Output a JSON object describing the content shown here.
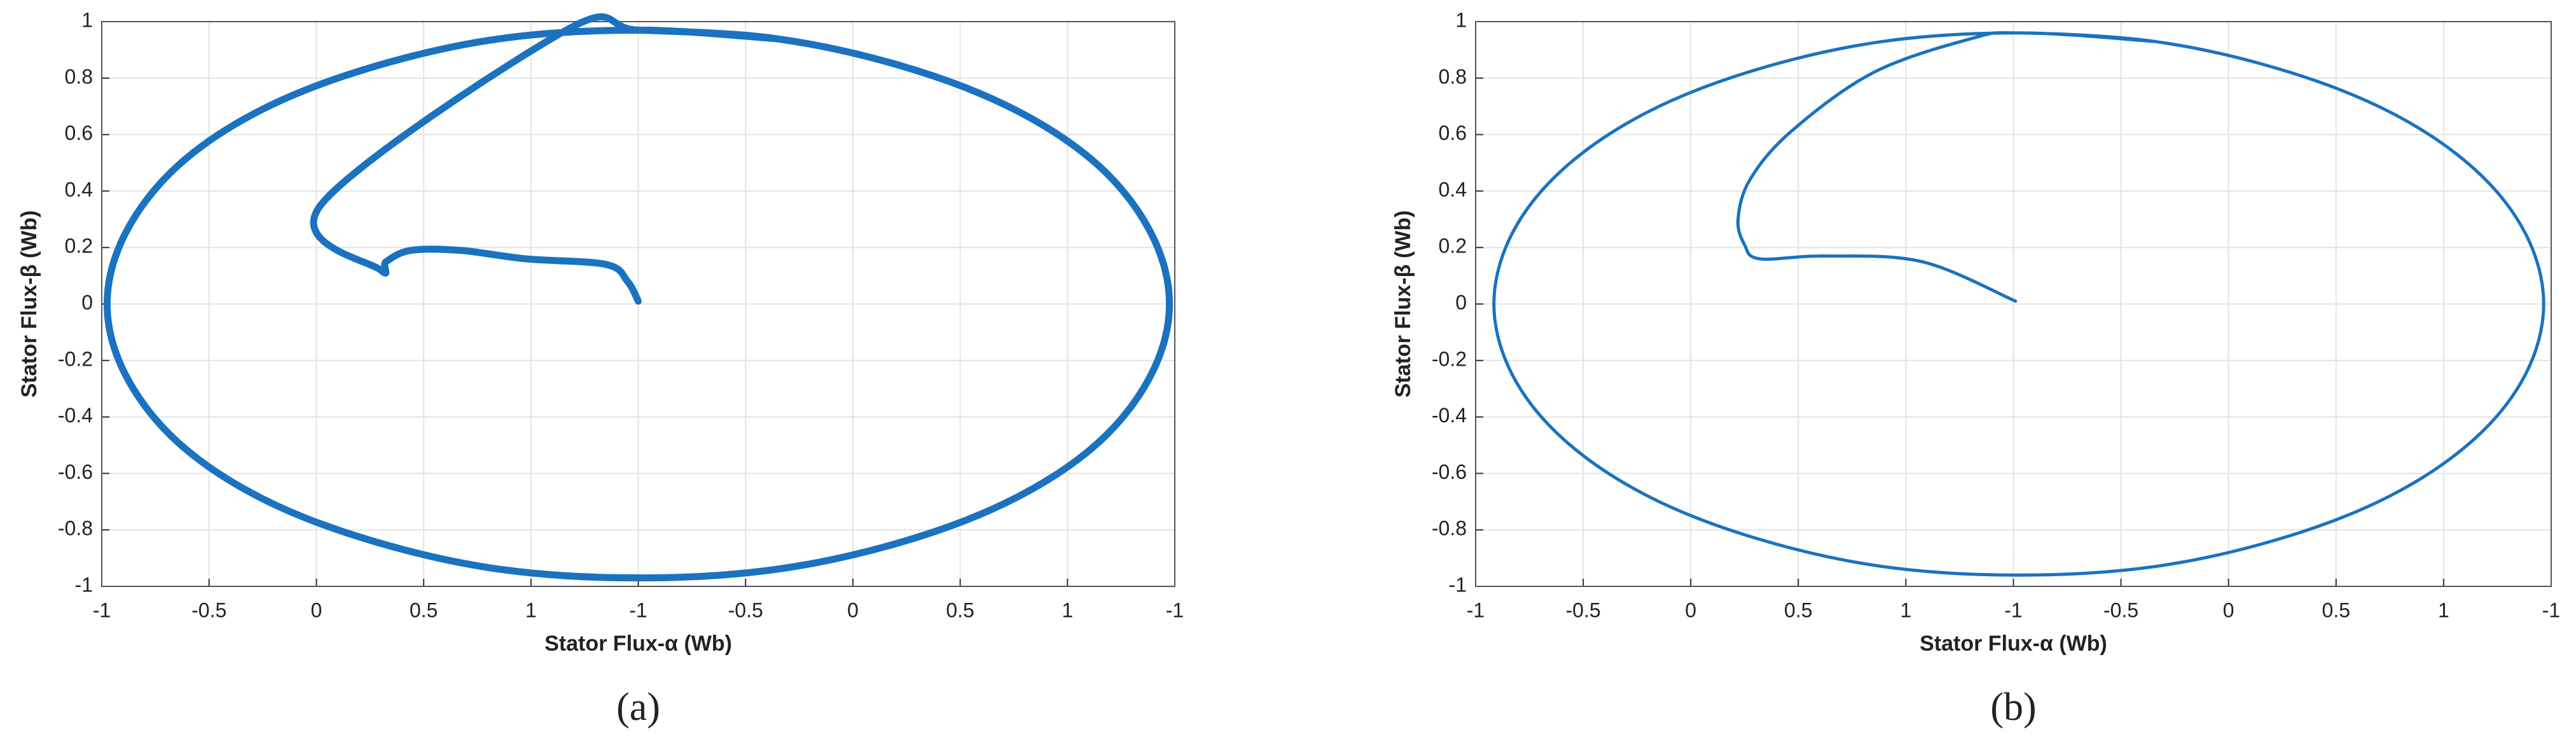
{
  "chart_data": [
    {
      "type": "line",
      "caption": "(a)",
      "xlabel": "Stator Flux-α (Wb)",
      "ylabel": "Stator Flux-β (Wb)",
      "xlim": [
        0,
        10
      ],
      "ylim": [
        -1,
        1
      ],
      "grid": true,
      "xticks": [
        {
          "value": 0,
          "label": "-1"
        },
        {
          "value": 1,
          "label": "-0.5"
        },
        {
          "value": 2,
          "label": "0"
        },
        {
          "value": 3,
          "label": "0.5"
        },
        {
          "value": 4,
          "label": "1"
        },
        {
          "value": 5,
          "label": "-1"
        },
        {
          "value": 6,
          "label": "-0.5"
        },
        {
          "value": 7,
          "label": "0"
        },
        {
          "value": 8,
          "label": "0.5"
        },
        {
          "value": 9,
          "label": "1"
        },
        {
          "value": 10,
          "label": "-1"
        }
      ],
      "yticks": [
        -1,
        -0.8,
        -0.6,
        -0.4,
        -0.2,
        0,
        0.2,
        0.4,
        0.6,
        0.8,
        1
      ],
      "x": [
        5.0,
        4.9,
        4.7,
        3.95,
        3.34,
        2.88,
        2.65,
        2.6,
        2.04,
        4.33,
        5.0,
        6.28,
        7.48,
        8.5,
        9.29,
        9.78,
        9.95,
        9.78,
        9.29,
        8.5,
        7.48,
        6.28,
        5.0,
        3.72,
        2.53,
        1.5,
        0.71,
        0.22,
        0.05,
        0.22,
        0.71,
        1.5,
        2.53,
        3.72,
        5.0,
        6.28
      ],
      "series": [
        {
          "color": "#1a72c0",
          "values": [
            0.01,
            0.08,
            0.14,
            0.16,
            0.19,
            0.19,
            0.15,
            0.12,
            0.35,
            0.97,
            0.97,
            0.94,
            0.84,
            0.69,
            0.49,
            0.25,
            0,
            -0.25,
            -0.49,
            -0.69,
            -0.84,
            -0.94,
            -0.97,
            -0.94,
            -0.84,
            -0.69,
            -0.49,
            -0.25,
            0,
            0.25,
            0.49,
            0.69,
            0.84,
            0.94,
            0.97,
            0.94
          ]
        }
      ]
    },
    {
      "type": "line",
      "caption": "(b)",
      "xlabel": "Stator Flux-α (Wb)",
      "ylabel": "Stator Flux-β (Wb)",
      "xlim": [
        0,
        10
      ],
      "ylim": [
        -1,
        1
      ],
      "grid": true,
      "xticks": [
        {
          "value": 0,
          "label": "-1"
        },
        {
          "value": 1,
          "label": "-0.5"
        },
        {
          "value": 2,
          "label": "0"
        },
        {
          "value": 3,
          "label": "0.5"
        },
        {
          "value": 4,
          "label": "1"
        },
        {
          "value": 5,
          "label": "-1"
        },
        {
          "value": 6,
          "label": "-0.5"
        },
        {
          "value": 7,
          "label": "0"
        },
        {
          "value": 8,
          "label": "0.5"
        },
        {
          "value": 9,
          "label": "1"
        },
        {
          "value": 10,
          "label": "-1"
        }
      ],
      "yticks": [
        -1,
        -0.8,
        -0.6,
        -0.4,
        -0.2,
        0,
        0.2,
        0.4,
        0.6,
        0.8,
        1
      ],
      "x": [
        5.02,
        4.15,
        3.24,
        2.64,
        2.5,
        2.44,
        2.55,
        2.93,
        3.7,
        4.61,
        5.05,
        6.31,
        7.49,
        8.5,
        9.28,
        9.76,
        9.93,
        9.76,
        9.28,
        8.5,
        7.49,
        6.31,
        5.05,
        3.79,
        2.61,
        1.6,
        0.82,
        0.34,
        0.17,
        0.34,
        0.82,
        1.6,
        2.61,
        3.79,
        5.05,
        6.31
      ],
      "series": [
        {
          "color": "#1a72c0",
          "values": [
            0.01,
            0.15,
            0.17,
            0.16,
            0.21,
            0.3,
            0.44,
            0.61,
            0.82,
            0.94,
            0.96,
            0.93,
            0.83,
            0.68,
            0.48,
            0.25,
            0,
            -0.25,
            -0.48,
            -0.68,
            -0.83,
            -0.93,
            -0.96,
            -0.93,
            -0.83,
            -0.68,
            -0.48,
            -0.25,
            0,
            0.25,
            0.48,
            0.68,
            0.83,
            0.93,
            0.96,
            0.93
          ]
        }
      ]
    }
  ]
}
